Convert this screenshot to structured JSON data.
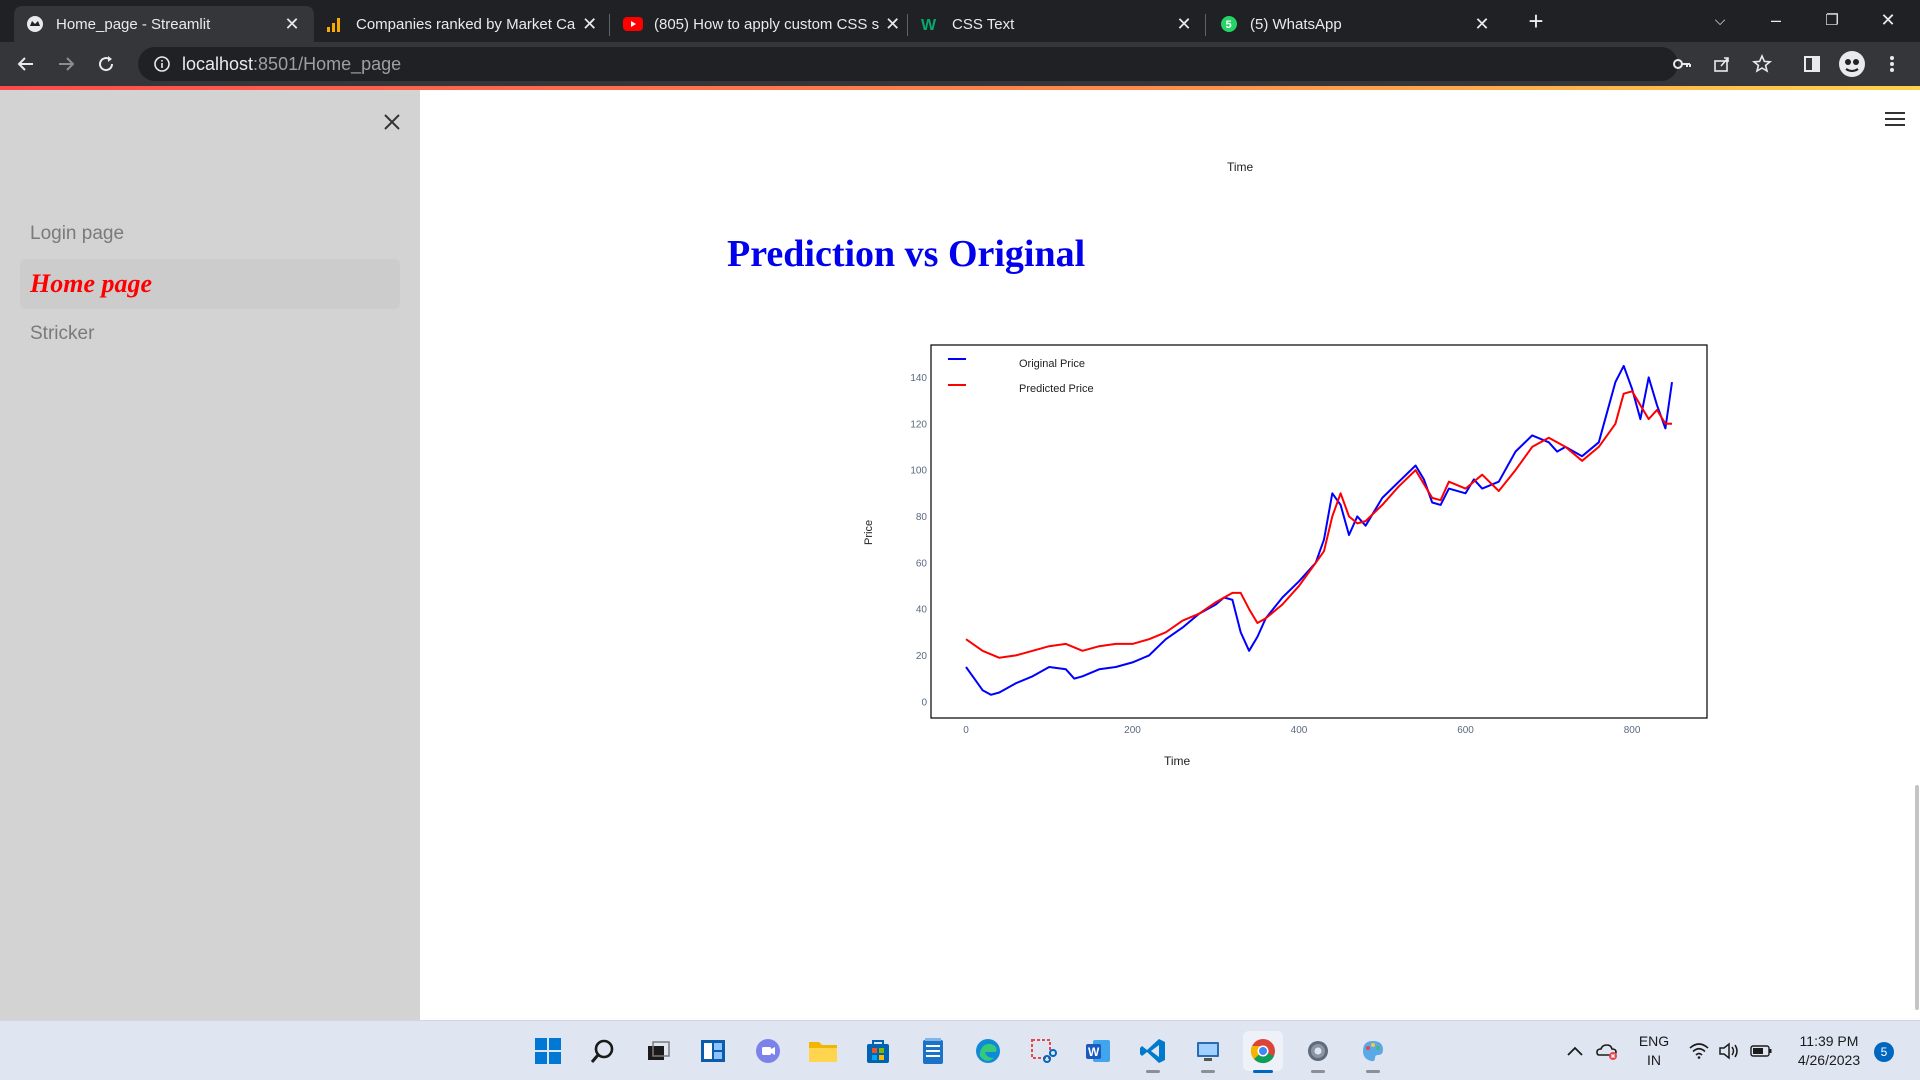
{
  "browser": {
    "tabs": [
      {
        "title": "Home_page - Streamlit",
        "icon": "streamlit-icon"
      },
      {
        "title": "Companies ranked by Market Ca",
        "icon": "bar-chart-icon"
      },
      {
        "title": "(805) How to apply custom CSS s",
        "icon": "youtube-icon"
      },
      {
        "title": "CSS Text",
        "icon": "w3schools-icon"
      },
      {
        "title": "(5) WhatsApp",
        "icon": "whatsapp-icon"
      }
    ],
    "url_host": "localhost",
    "url_path": ":8501/Home_page"
  },
  "sidebar": {
    "items": [
      {
        "label": "Login page"
      },
      {
        "label": "Home page"
      },
      {
        "label": "Stricker"
      }
    ]
  },
  "main": {
    "top_axis_label": "Time",
    "heading": "Prediction vs Original"
  },
  "colors": {
    "original": "#0000ff",
    "predicted": "#ff0000",
    "heading": "#0000ee",
    "active_nav": "#ff0000"
  },
  "chart_data": {
    "type": "line",
    "xlabel": "Time",
    "ylabel": "Price",
    "xlim": [
      -42,
      890
    ],
    "ylim": [
      -7,
      154
    ],
    "xticks": [
      0,
      200,
      400,
      600,
      800
    ],
    "yticks": [
      0,
      20,
      40,
      60,
      80,
      100,
      120,
      140
    ],
    "legend_position": "top-left",
    "grid": false,
    "series": [
      {
        "name": "Original Price",
        "color": "#0000ff",
        "x": [
          0,
          10,
          20,
          30,
          40,
          50,
          60,
          80,
          100,
          120,
          130,
          140,
          160,
          180,
          200,
          220,
          240,
          260,
          280,
          300,
          310,
          320,
          330,
          340,
          350,
          360,
          380,
          400,
          420,
          430,
          440,
          450,
          460,
          470,
          480,
          500,
          520,
          540,
          550,
          560,
          570,
          580,
          600,
          610,
          620,
          640,
          660,
          680,
          700,
          710,
          720,
          740,
          760,
          770,
          780,
          790,
          800,
          810,
          820,
          830,
          840,
          848
        ],
        "y": [
          15,
          10,
          5,
          3,
          4,
          6,
          8,
          11,
          15,
          14,
          10,
          11,
          14,
          15,
          17,
          20,
          27,
          32,
          38,
          42,
          45,
          44,
          30,
          22,
          28,
          36,
          45,
          52,
          60,
          70,
          90,
          85,
          72,
          80,
          76,
          88,
          95,
          102,
          96,
          86,
          85,
          92,
          90,
          96,
          92,
          95,
          108,
          115,
          112,
          108,
          110,
          106,
          112,
          125,
          138,
          145,
          135,
          122,
          140,
          128,
          118,
          138
        ]
      },
      {
        "name": "Predicted Price",
        "color": "#ff0000",
        "x": [
          0,
          20,
          40,
          60,
          80,
          100,
          120,
          140,
          160,
          180,
          200,
          220,
          240,
          260,
          280,
          300,
          320,
          330,
          340,
          350,
          360,
          380,
          400,
          420,
          430,
          440,
          450,
          460,
          470,
          480,
          500,
          520,
          540,
          560,
          570,
          580,
          600,
          620,
          640,
          660,
          680,
          700,
          720,
          740,
          760,
          780,
          790,
          800,
          810,
          820,
          830,
          840,
          848
        ],
        "y": [
          27,
          22,
          19,
          20,
          22,
          24,
          25,
          22,
          24,
          25,
          25,
          27,
          30,
          35,
          38,
          43,
          47,
          47,
          40,
          34,
          36,
          42,
          50,
          60,
          65,
          80,
          90,
          80,
          77,
          78,
          85,
          93,
          100,
          88,
          87,
          95,
          92,
          98,
          91,
          100,
          110,
          114,
          110,
          104,
          110,
          120,
          133,
          134,
          128,
          122,
          126,
          120,
          120
        ]
      }
    ]
  },
  "taskbar": {
    "icons": [
      "windows-start-icon",
      "search-icon",
      "task-view-icon",
      "widgets-icon",
      "teams-chat-icon",
      "file-explorer-icon",
      "microsoft-store-icon",
      "notepad-icon",
      "edge-icon",
      "snipping-tool-icon",
      "word-icon",
      "vscode-icon",
      "remote-desktop-icon",
      "chrome-icon",
      "settings-icon",
      "paint-icon"
    ],
    "language": "ENG",
    "region": "IN",
    "time": "11:39 PM",
    "date": "4/26/2023",
    "notifications": "5"
  }
}
